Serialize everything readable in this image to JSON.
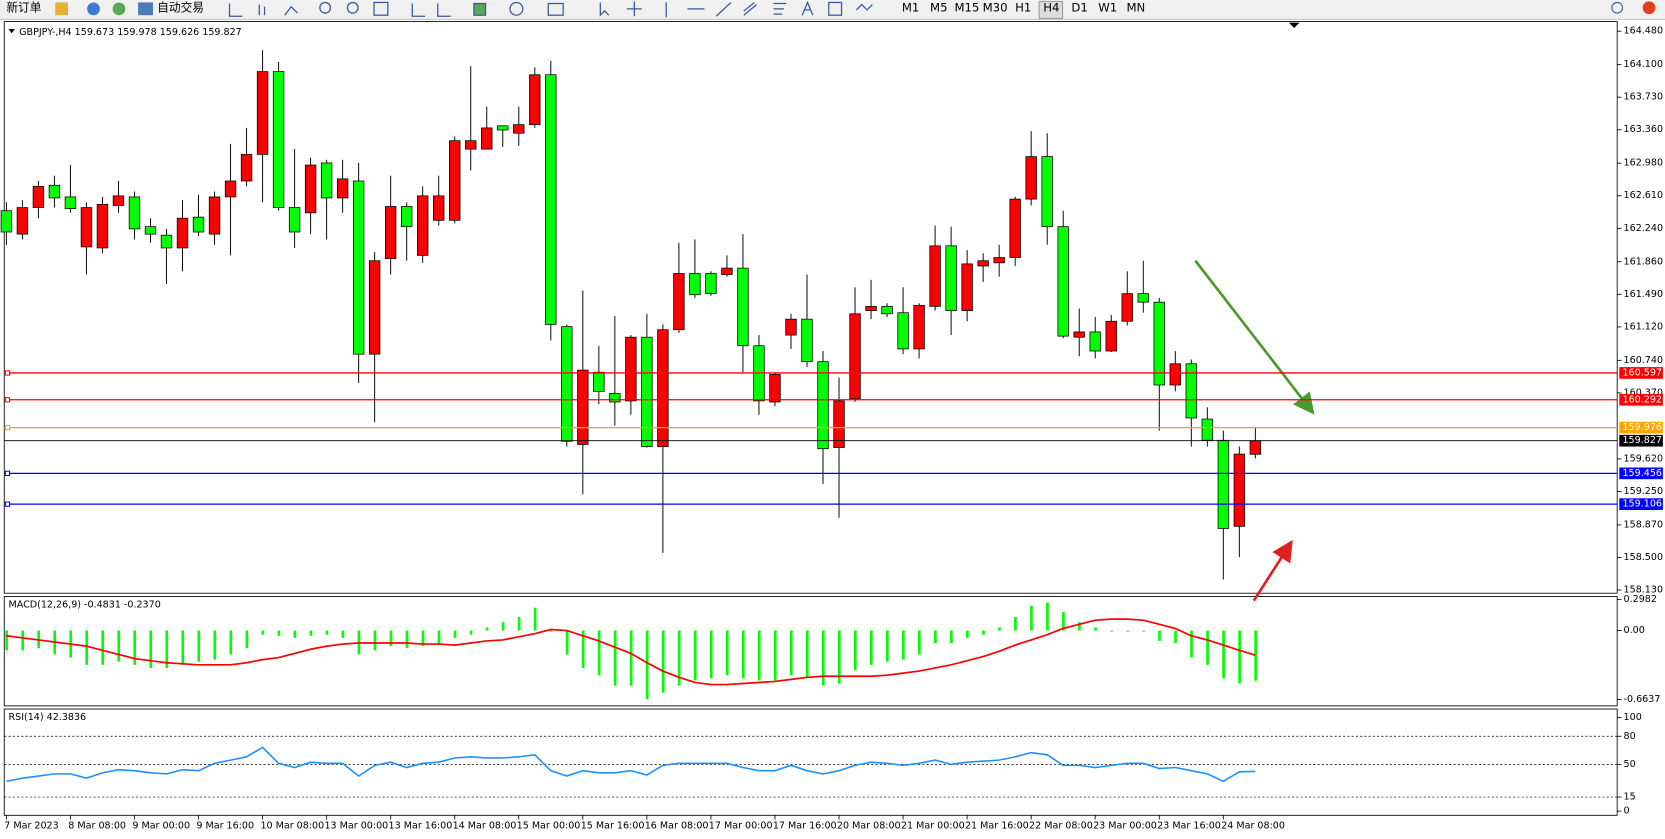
{
  "toolbar": {
    "new_order": "新订单",
    "auto_trading": "自动交易",
    "timeframes": [
      "M1",
      "M5",
      "M15",
      "M30",
      "H1",
      "H4",
      "D1",
      "W1",
      "MN"
    ],
    "active_timeframe": "H4"
  },
  "chart_data": [
    {
      "type": "candlestick",
      "symbol": "GBPJPY-,H4",
      "categories": [
        "7 Mar 2023",
        null,
        null,
        null,
        "8 Mar 08:00",
        null,
        null,
        null,
        "9 Mar 00:00",
        null,
        null,
        null,
        "9 Mar 16:00",
        null,
        null,
        null,
        "10 Mar 08:00",
        null,
        null,
        null,
        "13 Mar 00:00",
        null,
        null,
        null,
        "13 Mar 16:00",
        null,
        null,
        null,
        "14 Mar 08:00",
        null,
        null,
        null,
        "15 Mar 00:00",
        null,
        null,
        null,
        "15 Mar 16:00",
        null,
        null,
        null,
        "16 Mar 08:00",
        null,
        null,
        null,
        "17 Mar 00:00",
        null,
        null,
        null,
        "17 Mar 16:00",
        null,
        null,
        null,
        "20 Mar 08:00",
        null,
        null,
        null,
        "21 Mar 00:00",
        null,
        null,
        null,
        "21 Mar 16:00",
        null,
        null,
        null,
        "22 Mar 08:00",
        null,
        null,
        null,
        "23 Mar 00:00",
        null,
        null,
        null,
        "23 Mar 16:00",
        null,
        null,
        null,
        "24 Mar 08:00",
        null,
        null
      ],
      "open": [
        162.44,
        162.174,
        162.476,
        162.729,
        162.597,
        162.029,
        162.017,
        162.5,
        162.597,
        162.259,
        162.162,
        162.017,
        162.367,
        162.174,
        162.597,
        162.778,
        163.08,
        164.021,
        162.476,
        162.416,
        162.983,
        162.585,
        162.778,
        160.81,
        161.896,
        162.488,
        161.933,
        162.331,
        162.331,
        163.14,
        163.14,
        163.405,
        163.321,
        163.418,
        163.985,
        161.124,
        159.784,
        160.605,
        160.363,
        160.279,
        161.003,
        159.76,
        161.088,
        161.727,
        161.727,
        161.715,
        161.788,
        160.906,
        160.267,
        161.027,
        161.208,
        160.725,
        159.748,
        160.303,
        161.305,
        161.353,
        161.281,
        160.87,
        161.353,
        162.041,
        161.305,
        161.812,
        161.848,
        161.908,
        162.572,
        163.055,
        162.259,
        161.003,
        161.063,
        160.846,
        161.184,
        161.498,
        161.401,
        160.46,
        160.701,
        160.073,
        159.832,
        158.854,
        159.673
      ],
      "high": [
        162.536,
        162.56,
        162.778,
        162.838,
        162.959,
        162.536,
        162.597,
        162.778,
        162.657,
        162.355,
        162.234,
        162.56,
        162.621,
        162.657,
        163.2,
        163.381,
        164.263,
        164.13,
        163.14,
        163.043,
        163.019,
        163.019,
        162.983,
        161.969,
        162.838,
        162.536,
        162.717,
        162.838,
        163.285,
        164.082,
        163.623,
        163.405,
        163.623,
        164.07,
        164.142,
        161.148,
        161.534,
        160.906,
        161.244,
        161.027,
        161.269,
        161.148,
        162.077,
        162.114,
        161.752,
        161.933,
        162.174,
        161.027,
        160.605,
        161.269,
        161.715,
        160.846,
        160.544,
        161.57,
        161.655,
        161.389,
        161.57,
        161.389,
        162.271,
        162.259,
        161.993,
        161.957,
        162.053,
        162.597,
        163.345,
        163.321,
        162.44,
        161.329,
        161.232,
        161.257,
        161.752,
        161.872,
        161.45,
        160.846,
        160.75,
        160.206,
        159.941,
        159.76,
        159.978
      ],
      "low": [
        162.053,
        162.114,
        162.355,
        162.476,
        162.416,
        161.715,
        161.957,
        162.416,
        162.114,
        162.077,
        161.607,
        161.752,
        162.15,
        162.053,
        161.933,
        162.717,
        162.536,
        162.44,
        162.017,
        162.174,
        162.114,
        162.416,
        160.484,
        160.037,
        161.715,
        161.872,
        161.848,
        162.271,
        162.295,
        162.898,
        163.14,
        163.164,
        163.176,
        163.381,
        160.967,
        159.76,
        159.217,
        160.242,
        159.999,
        160.122,
        159.748,
        158.552,
        161.051,
        161.45,
        161.474,
        161.691,
        160.605,
        160.122,
        160.218,
        160.87,
        160.665,
        159.337,
        158.951,
        160.267,
        161.208,
        161.232,
        160.81,
        160.762,
        161.305,
        161.027,
        161.184,
        161.631,
        161.691,
        161.812,
        162.5,
        162.053,
        160.991,
        160.786,
        160.762,
        160.834,
        161.136,
        161.281,
        159.941,
        160.387,
        159.76,
        159.76,
        158.25,
        158.504,
        159.626
      ],
      "close": [
        162.198,
        162.476,
        162.717,
        162.585,
        162.464,
        162.476,
        162.512,
        162.609,
        162.234,
        162.174,
        162.017,
        162.355,
        162.198,
        162.597,
        162.778,
        163.08,
        164.021,
        162.476,
        162.198,
        162.959,
        162.585,
        162.802,
        160.81,
        161.872,
        162.488,
        162.259,
        162.609,
        162.609,
        163.236,
        163.236,
        163.381,
        163.357,
        163.418,
        163.985,
        161.148,
        159.82,
        160.629,
        160.387,
        160.267,
        161.003,
        159.76,
        161.088,
        161.727,
        161.486,
        161.498,
        161.788,
        160.906,
        160.279,
        160.58,
        161.208,
        160.725,
        159.736,
        160.279,
        161.269,
        161.353,
        161.269,
        160.87,
        161.365,
        162.041,
        161.305,
        161.836,
        161.872,
        161.908,
        162.572,
        163.055,
        162.259,
        161.015,
        161.063,
        160.846,
        161.184,
        161.498,
        161.401,
        160.46,
        160.701,
        160.085,
        159.832,
        158.83,
        159.675,
        159.827
      ],
      "up_color": "#ff0000",
      "down_color": "#00ff00",
      "ylim": [
        158.106,
        164.565
      ],
      "yticks": [
        {
          "value": 164.48,
          "label": "164.480"
        },
        {
          "value": 164.1,
          "label": "164.100"
        },
        {
          "value": 163.73,
          "label": "163.730"
        },
        {
          "value": 163.36,
          "label": "163.360"
        },
        {
          "value": 162.98,
          "label": "162.980"
        },
        {
          "value": 162.61,
          "label": "162.610"
        },
        {
          "value": 162.24,
          "label": "162.240"
        },
        {
          "value": 161.86,
          "label": "161.860"
        },
        {
          "value": 161.49,
          "label": "161.490"
        },
        {
          "value": 161.12,
          "label": "161.120"
        },
        {
          "value": 160.74,
          "label": "160.740"
        },
        {
          "value": 160.37,
          "label": "160.370"
        },
        {
          "value": 159.62,
          "label": "159.620"
        },
        {
          "value": 159.25,
          "label": "159.250"
        },
        {
          "value": 158.87,
          "label": "158.870"
        },
        {
          "value": 158.5,
          "label": "158.500"
        },
        {
          "value": 158.13,
          "label": "158.130"
        }
      ],
      "levels": [
        {
          "value": 160.597,
          "color": "#ff0000"
        },
        {
          "value": 160.292,
          "color": "#ff0000"
        },
        {
          "value": 159.976,
          "color": "#ffa500"
        },
        {
          "value": 159.456,
          "color": "#0000ff"
        },
        {
          "value": 159.106,
          "color": "#0000ff"
        }
      ]
    },
    {
      "type": "macd",
      "title": "MACD(12,26,9) -0.4831 -0.2370",
      "histogram": {
        "color": "#00ff00",
        "values": [
          -0.19,
          -0.19,
          -0.17,
          -0.23,
          -0.26,
          -0.33,
          -0.33,
          -0.3,
          -0.33,
          -0.36,
          -0.36,
          -0.33,
          -0.3,
          -0.28,
          -0.23,
          -0.17,
          -0.04,
          -0.05,
          -0.07,
          -0.05,
          -0.04,
          -0.07,
          -0.23,
          -0.19,
          -0.15,
          -0.17,
          -0.15,
          -0.14,
          -0.07,
          -0.04,
          0.03,
          0.08,
          0.13,
          0.22,
          -0.01,
          -0.23,
          -0.36,
          -0.43,
          -0.53,
          -0.53,
          -0.66,
          -0.6,
          -0.53,
          -0.48,
          -0.46,
          -0.43,
          -0.46,
          -0.48,
          -0.48,
          -0.43,
          -0.46,
          -0.53,
          -0.51,
          -0.38,
          -0.33,
          -0.3,
          -0.28,
          -0.23,
          -0.12,
          -0.12,
          -0.07,
          -0.04,
          0.03,
          0.13,
          0.24,
          0.27,
          0.18,
          0.08,
          0.03,
          -0.01,
          -0.01,
          -0.01,
          -0.1,
          -0.12,
          -0.26,
          -0.33,
          -0.46,
          -0.51,
          -0.4831
        ]
      },
      "signal": {
        "color": "#ff0000",
        "values": [
          -0.05,
          -0.07,
          -0.09,
          -0.11,
          -0.13,
          -0.15,
          -0.19,
          -0.23,
          -0.27,
          -0.29,
          -0.31,
          -0.32,
          -0.33,
          -0.33,
          -0.33,
          -0.31,
          -0.28,
          -0.26,
          -0.22,
          -0.18,
          -0.15,
          -0.13,
          -0.12,
          -0.12,
          -0.12,
          -0.12,
          -0.13,
          -0.13,
          -0.14,
          -0.12,
          -0.1,
          -0.09,
          -0.06,
          -0.03,
          0.01,
          0.0,
          -0.05,
          -0.1,
          -0.16,
          -0.22,
          -0.31,
          -0.39,
          -0.45,
          -0.5,
          -0.52,
          -0.52,
          -0.51,
          -0.5,
          -0.49,
          -0.47,
          -0.45,
          -0.44,
          -0.44,
          -0.44,
          -0.44,
          -0.43,
          -0.41,
          -0.39,
          -0.36,
          -0.33,
          -0.29,
          -0.25,
          -0.2,
          -0.14,
          -0.09,
          -0.04,
          0.02,
          0.06,
          0.1,
          0.11,
          0.11,
          0.1,
          0.06,
          0.02,
          -0.05,
          -0.09,
          -0.14,
          -0.19,
          -0.237
        ]
      },
      "ylim": [
        -0.7251,
        0.3187
      ],
      "yticks": [
        0.2982,
        {
          "value": 0,
          "label": "0.00"
        },
        -0.6637
      ]
    },
    {
      "type": "line",
      "title": "RSI(14) 42.3836",
      "color": "#1e90ff",
      "values": [
        31.8,
        35.2,
        37.5,
        39.8,
        39.8,
        35.2,
        40.9,
        44.3,
        43.2,
        40.9,
        39.8,
        44.3,
        43.2,
        51.1,
        54.5,
        58.0,
        68.2,
        51.1,
        46.6,
        52.3,
        51.1,
        51.1,
        37.5,
        48.9,
        52.3,
        46.6,
        51.1,
        52.3,
        56.8,
        58.0,
        56.8,
        56.8,
        58.0,
        60.2,
        43.2,
        37.5,
        43.2,
        40.9,
        40.9,
        43.2,
        38.6,
        48.9,
        51.1,
        51.1,
        51.1,
        51.1,
        46.6,
        43.2,
        43.2,
        48.9,
        43.2,
        39.8,
        43.2,
        48.9,
        52.3,
        51.1,
        48.9,
        51.1,
        54.5,
        50.0,
        52.3,
        53.4,
        54.5,
        58.0,
        62.5,
        60.2,
        48.9,
        48.9,
        46.6,
        48.9,
        51.1,
        51.1,
        45.5,
        46.6,
        43.2,
        39.8,
        31.8,
        42.0,
        42.3836
      ],
      "ylim": [
        -4.5,
        108
      ],
      "yticks": [
        100,
        80,
        50,
        15,
        0
      ],
      "levels": [
        80,
        50,
        15
      ]
    }
  ]
}
